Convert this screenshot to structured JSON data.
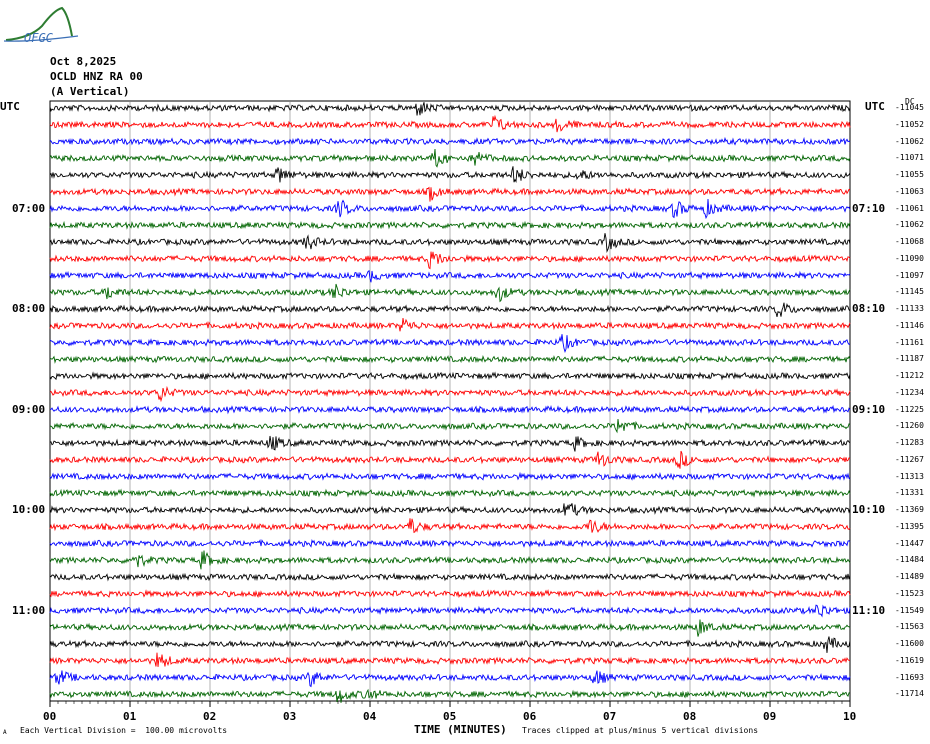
{
  "header": {
    "logo_text": "OFGC",
    "date": "Oct 8,2025",
    "station": "OCLD HNZ RA 00",
    "component": "(A Vertical)",
    "left_tz": "UTC",
    "right_tz": "UTC",
    "right_tz_suffix": "DC"
  },
  "footer": {
    "scale_note": "Each Vertical Division =  100.00 microvolts",
    "clip_note": "Traces clipped at plus/minus 5 vertical divisions",
    "corner_mark": "A"
  },
  "colors": {
    "trace_cycle": [
      "#000000",
      "#ff0000",
      "#0000ff",
      "#006400"
    ],
    "grid": "#808080",
    "logo": "#2e7d32"
  },
  "chart_data": {
    "type": "line",
    "title": "",
    "xlabel": "TIME (MINUTES)",
    "ylabel": "",
    "xlim": [
      0,
      10
    ],
    "x_ticks": [
      "00",
      "01",
      "02",
      "03",
      "04",
      "05",
      "06",
      "07",
      "08",
      "09",
      "10"
    ],
    "left_time_labels": [
      {
        "row": 6,
        "text": "07:00"
      },
      {
        "row": 12,
        "text": "08:00"
      },
      {
        "row": 18,
        "text": "09:00"
      },
      {
        "row": 24,
        "text": "10:00"
      },
      {
        "row": 30,
        "text": "11:00"
      }
    ],
    "right_time_labels": [
      {
        "row": 6,
        "text": "07:10"
      },
      {
        "row": 12,
        "text": "08:10"
      },
      {
        "row": 18,
        "text": "09:10"
      },
      {
        "row": 24,
        "text": "10:10"
      },
      {
        "row": 30,
        "text": "11:10"
      }
    ],
    "trace_dc_offsets": [
      "-11045",
      "-11052",
      "-11062",
      "-11071",
      "-11055",
      "-11063",
      "-11061",
      "-11062",
      "-11068",
      "-11090",
      "-11097",
      "-11145",
      "-11133",
      "-11146",
      "-11161",
      "-11187",
      "-11212",
      "-11234",
      "-11225",
      "-11260",
      "-11283",
      "-11267",
      "-11313",
      "-11331",
      "-11369",
      "-11395",
      "-11447",
      "-11484",
      "-11489",
      "-11523",
      "-11549",
      "-11563",
      "-11600",
      "-11619",
      "-11693",
      "-11714"
    ],
    "bursts": [
      {
        "row": 0,
        "t": 4.6,
        "a": 1.0
      },
      {
        "row": 1,
        "t": 5.55,
        "a": 1.1
      },
      {
        "row": 1,
        "t": 6.35,
        "a": 1.0
      },
      {
        "row": 3,
        "t": 4.8,
        "a": 1.2
      },
      {
        "row": 3,
        "t": 5.3,
        "a": 1.0
      },
      {
        "row": 4,
        "t": 2.85,
        "a": 1.1
      },
      {
        "row": 4,
        "t": 5.8,
        "a": 1.2
      },
      {
        "row": 4,
        "t": 6.6,
        "a": 0.8
      },
      {
        "row": 5,
        "t": 4.75,
        "a": 0.9
      },
      {
        "row": 6,
        "t": 3.6,
        "a": 1.3
      },
      {
        "row": 6,
        "t": 7.8,
        "a": 1.1
      },
      {
        "row": 6,
        "t": 8.2,
        "a": 1.0
      },
      {
        "row": 8,
        "t": 3.2,
        "a": 1.0
      },
      {
        "row": 8,
        "t": 6.95,
        "a": 1.1
      },
      {
        "row": 9,
        "t": 4.75,
        "a": 1.3
      },
      {
        "row": 10,
        "t": 4.0,
        "a": 0.6
      },
      {
        "row": 11,
        "t": 0.7,
        "a": 0.9
      },
      {
        "row": 11,
        "t": 3.55,
        "a": 1.0
      },
      {
        "row": 11,
        "t": 5.6,
        "a": 1.1
      },
      {
        "row": 12,
        "t": 9.1,
        "a": 1.2
      },
      {
        "row": 13,
        "t": 4.4,
        "a": 1.0
      },
      {
        "row": 14,
        "t": 6.4,
        "a": 1.1
      },
      {
        "row": 17,
        "t": 1.35,
        "a": 1.2
      },
      {
        "row": 19,
        "t": 7.1,
        "a": 1.1
      },
      {
        "row": 20,
        "t": 2.75,
        "a": 1.1
      },
      {
        "row": 20,
        "t": 6.55,
        "a": 0.8
      },
      {
        "row": 21,
        "t": 6.85,
        "a": 1.1
      },
      {
        "row": 21,
        "t": 7.85,
        "a": 1.2
      },
      {
        "row": 24,
        "t": 6.45,
        "a": 1.3
      },
      {
        "row": 25,
        "t": 4.5,
        "a": 1.0
      },
      {
        "row": 25,
        "t": 6.75,
        "a": 1.0
      },
      {
        "row": 27,
        "t": 1.05,
        "a": 1.1
      },
      {
        "row": 27,
        "t": 1.9,
        "a": 1.1
      },
      {
        "row": 30,
        "t": 9.6,
        "a": 1.0
      },
      {
        "row": 31,
        "t": 8.1,
        "a": 1.1
      },
      {
        "row": 32,
        "t": 9.7,
        "a": 1.0
      },
      {
        "row": 33,
        "t": 1.35,
        "a": 1.1
      },
      {
        "row": 34,
        "t": 0.1,
        "a": 1.0
      },
      {
        "row": 34,
        "t": 3.25,
        "a": 1.1
      },
      {
        "row": 34,
        "t": 6.8,
        "a": 1.1
      },
      {
        "row": 35,
        "t": 3.6,
        "a": 1.1
      },
      {
        "row": 35,
        "t": 3.95,
        "a": 0.8
      }
    ]
  }
}
